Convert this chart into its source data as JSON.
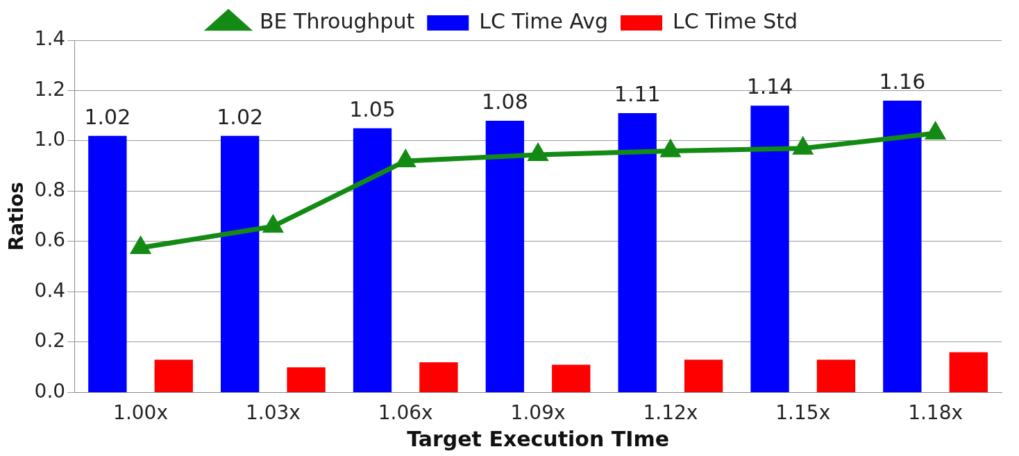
{
  "chart_data": {
    "type": "bar",
    "xlabel": "Target Execution TIme",
    "ylabel": "Ratios",
    "categories": [
      "1.00x",
      "1.03x",
      "1.06x",
      "1.09x",
      "1.12x",
      "1.15x",
      "1.18x"
    ],
    "series": [
      {
        "name": "LC Time Avg",
        "color": "#0000ff",
        "values": [
          1.02,
          1.02,
          1.05,
          1.08,
          1.11,
          1.14,
          1.16
        ],
        "value_labels": [
          "1.02",
          "1.02",
          "1.05",
          "1.08",
          "1.11",
          "1.14",
          "1.16"
        ]
      },
      {
        "name": "LC Time Std",
        "color": "#ff0000",
        "values": [
          0.13,
          0.1,
          0.12,
          0.11,
          0.13,
          0.13,
          0.16
        ]
      },
      {
        "name": "BE Throughput",
        "type": "line",
        "color": "#138a13",
        "marker": "triangle",
        "values": [
          0.575,
          0.66,
          0.92,
          0.945,
          0.96,
          0.97,
          1.03
        ]
      }
    ],
    "ylim": [
      0,
      1.4
    ],
    "yticks": [
      {
        "value": 0,
        "label": "0.0"
      },
      {
        "value": 0.2,
        "label": "0.2"
      },
      {
        "value": 0.4,
        "label": "0.4"
      },
      {
        "value": 0.6,
        "label": "0.6"
      },
      {
        "value": 0.8,
        "label": "0.8"
      },
      {
        "value": 1.0,
        "label": "1.0"
      },
      {
        "value": 1.2,
        "label": "1.2"
      },
      {
        "value": 1.4,
        "label": "1.4"
      }
    ],
    "grid": "y",
    "legend": "top"
  }
}
